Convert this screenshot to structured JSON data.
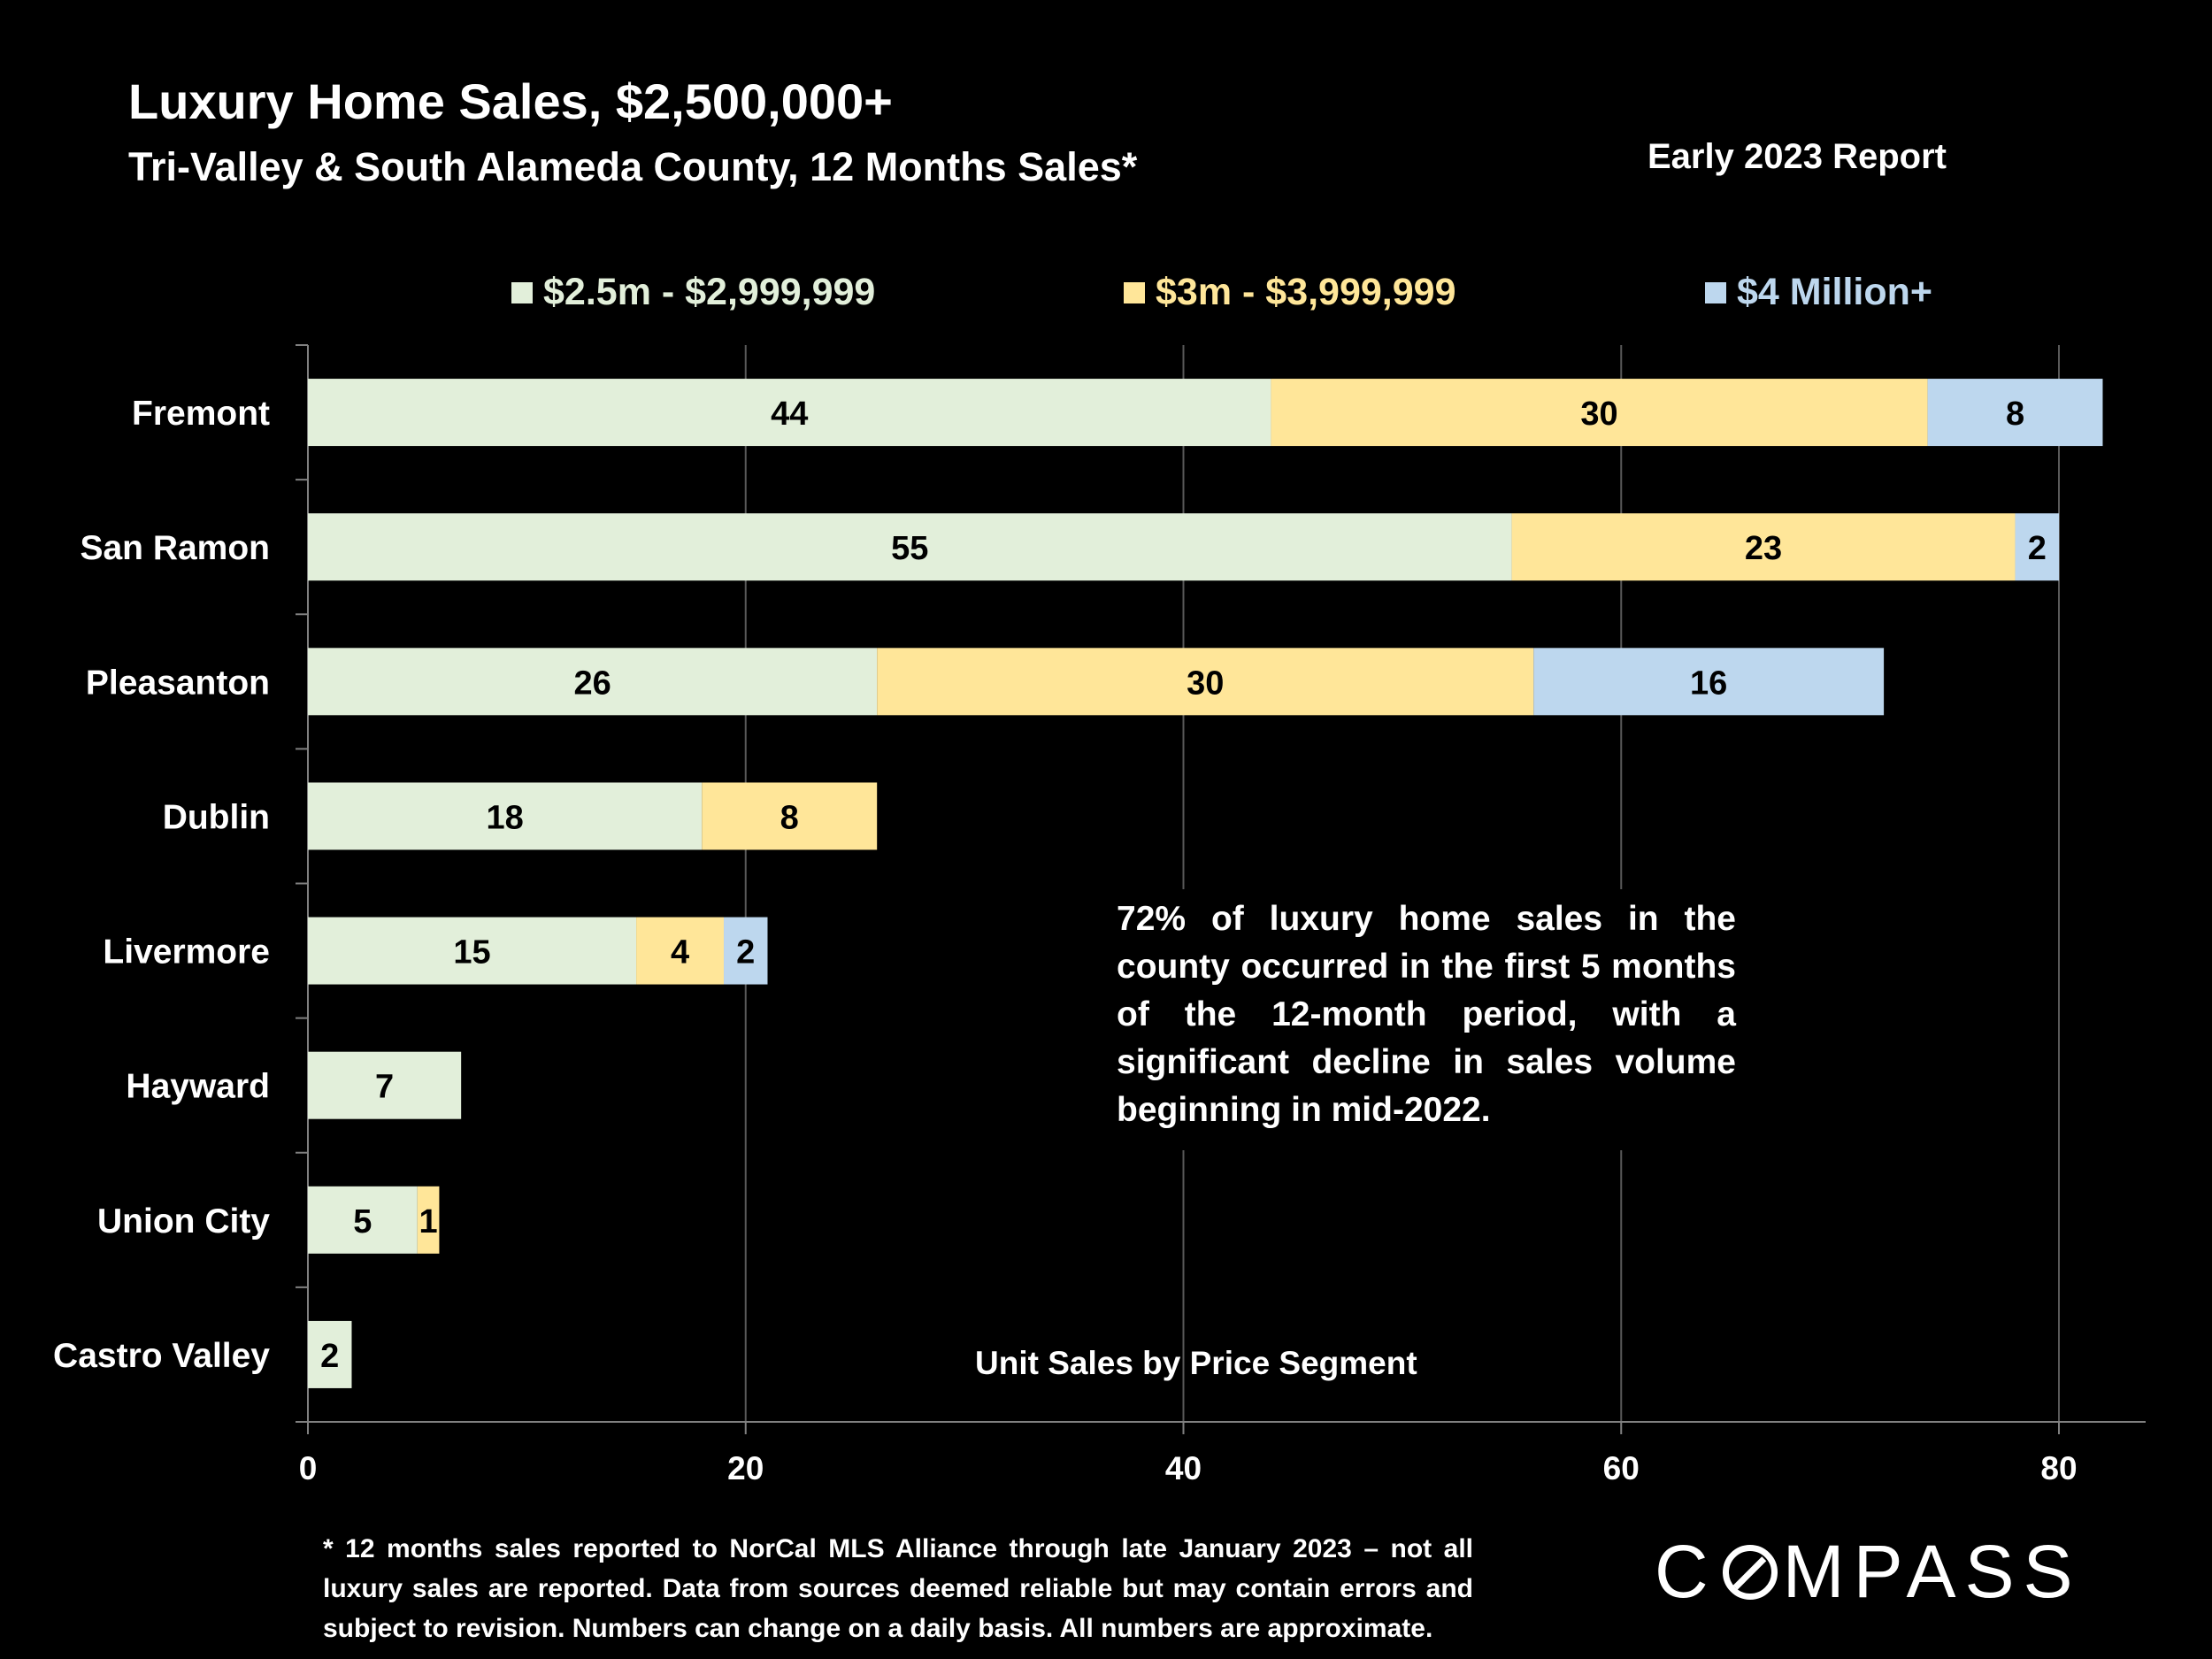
{
  "header": {
    "title": "Luxury Home Sales, $2,500,000+",
    "subtitle": "Tri-Valley & South Alameda County, 12 Months Sales*",
    "report_label": "Early 2023 Report"
  },
  "legend": [
    {
      "label": "$2.5m - $2,999,999",
      "color": "#E2EFDA"
    },
    {
      "label": "$3m - $3,999,999",
      "color": "#FFE699"
    },
    {
      "label": "$4 Million+",
      "color": "#BDD7EE"
    }
  ],
  "annotation": "72% of luxury home sales in the county occurred in the first 5 months of the 12-month period, with a significant decline in sales volume beginning in mid-2022.",
  "axis_caption": "Unit Sales by Price Segment",
  "footnote": "* 12 months sales reported to NorCal MLS Alliance through late January 2023 – not all luxury sales are reported. Data from sources deemed reliable but may contain errors and subject to revision. Numbers can change on a daily basis. All numbers are approximate.",
  "logo": {
    "text_before": "C",
    "text_after": "MPASS"
  },
  "colors": {
    "background": "#000000",
    "text": "#FFFFFF",
    "gridline": "#595959",
    "axis": "#808080",
    "segment_1": "#E2EFDA",
    "segment_2": "#FFE699",
    "segment_3": "#BDD7EE"
  },
  "chart_data": {
    "type": "bar",
    "orientation": "horizontal",
    "stacked": true,
    "categories": [
      "Fremont",
      "San Ramon",
      "Pleasanton",
      "Dublin",
      "Livermore",
      "Hayward",
      "Union City",
      "Castro Valley"
    ],
    "series": [
      {
        "name": "$2.5m - $2,999,999",
        "color": "#E2EFDA",
        "values": [
          44,
          55,
          26,
          18,
          15,
          7,
          5,
          2
        ]
      },
      {
        "name": "$3m - $3,999,999",
        "color": "#FFE699",
        "values": [
          30,
          23,
          30,
          8,
          4,
          0,
          1,
          0
        ]
      },
      {
        "name": "$4 Million+",
        "color": "#BDD7EE",
        "values": [
          8,
          2,
          16,
          0,
          2,
          0,
          0,
          0
        ]
      }
    ],
    "xlim": [
      0,
      84
    ],
    "xticks": [
      0,
      20,
      40,
      60,
      80
    ],
    "xlabel": "Unit Sales by Price Segment",
    "grid": true,
    "legend_position": "top"
  }
}
